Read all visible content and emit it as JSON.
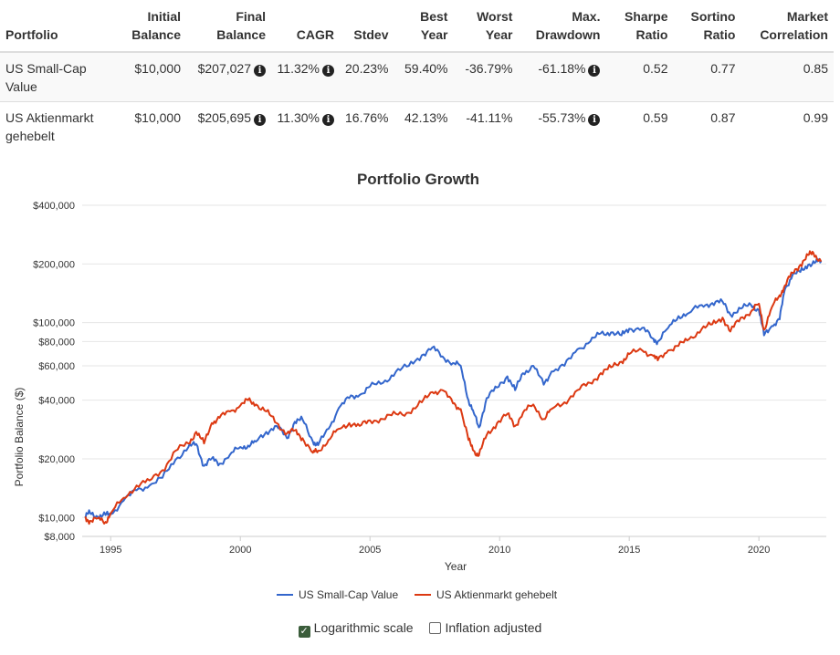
{
  "table": {
    "headers": [
      {
        "l1": "",
        "l2": "Portfolio"
      },
      {
        "l1": "Initial",
        "l2": "Balance"
      },
      {
        "l1": "Final",
        "l2": "Balance"
      },
      {
        "l1": "",
        "l2": "CAGR"
      },
      {
        "l1": "",
        "l2": "Stdev"
      },
      {
        "l1": "Best",
        "l2": "Year"
      },
      {
        "l1": "Worst",
        "l2": "Year"
      },
      {
        "l1": "Max.",
        "l2": "Drawdown"
      },
      {
        "l1": "Sharpe",
        "l2": "Ratio"
      },
      {
        "l1": "Sortino",
        "l2": "Ratio"
      },
      {
        "l1": "Market",
        "l2": "Correlation"
      }
    ],
    "rows": [
      {
        "portfolio_l1": "US Small-Cap",
        "portfolio_l2": "Value",
        "initial": "$10,000",
        "final": "$207,027",
        "cagr": "11.32%",
        "stdev": "20.23%",
        "best": "59.40%",
        "worst": "-36.79%",
        "drawdown": "-61.18%",
        "sharpe": "0.52",
        "sortino": "0.77",
        "corr": "0.85"
      },
      {
        "portfolio_l1": "US Aktienmarkt",
        "portfolio_l2": "gehebelt",
        "initial": "$10,000",
        "final": "$205,695",
        "cagr": "11.30%",
        "stdev": "16.76%",
        "best": "42.13%",
        "worst": "-41.11%",
        "drawdown": "-55.73%",
        "sharpe": "0.59",
        "sortino": "0.87",
        "corr": "0.99"
      }
    ],
    "info_icon": "info-circle-icon",
    "info_glyph": "i"
  },
  "chart_data": {
    "type": "line",
    "title": "Portfolio Growth",
    "xlabel": "Year",
    "ylabel": "Portfolio Balance ($)",
    "yscale": "log",
    "ylim": [
      8000,
      400000
    ],
    "xlim": [
      1993.9,
      2022.6
    ],
    "y_ticks": [
      {
        "v": 8000,
        "label": "$8,000"
      },
      {
        "v": 10000,
        "label": "$10,000"
      },
      {
        "v": 20000,
        "label": "$20,000"
      },
      {
        "v": 40000,
        "label": "$40,000"
      },
      {
        "v": 60000,
        "label": "$60,000"
      },
      {
        "v": 80000,
        "label": "$80,000"
      },
      {
        "v": 100000,
        "label": "$100,000"
      },
      {
        "v": 200000,
        "label": "$200,000"
      },
      {
        "v": 400000,
        "label": "$400,000"
      }
    ],
    "x_ticks": [
      {
        "v": 1995,
        "label": "1995"
      },
      {
        "v": 2000,
        "label": "2000"
      },
      {
        "v": 2005,
        "label": "2005"
      },
      {
        "v": 2010,
        "label": "2010"
      },
      {
        "v": 2015,
        "label": "2015"
      },
      {
        "v": 2020,
        "label": "2020"
      }
    ],
    "series": [
      {
        "name": "US Small-Cap Value",
        "color": "#3366cc",
        "points": [
          [
            1994.0,
            10000
          ],
          [
            1994.2,
            10600
          ],
          [
            1994.5,
            10100
          ],
          [
            1994.8,
            10300
          ],
          [
            1995.0,
            10400
          ],
          [
            1995.5,
            12200
          ],
          [
            1996.0,
            13800
          ],
          [
            1996.5,
            14600
          ],
          [
            1997.0,
            16000
          ],
          [
            1997.5,
            19800
          ],
          [
            1998.0,
            23000
          ],
          [
            1998.3,
            23800
          ],
          [
            1998.6,
            18400
          ],
          [
            1998.9,
            20100
          ],
          [
            1999.2,
            18900
          ],
          [
            1999.6,
            21000
          ],
          [
            2000.0,
            23000
          ],
          [
            2000.3,
            23400
          ],
          [
            2000.6,
            24500
          ],
          [
            2001.0,
            27500
          ],
          [
            2001.4,
            29500
          ],
          [
            2001.8,
            25500
          ],
          [
            2002.1,
            31000
          ],
          [
            2002.4,
            31800
          ],
          [
            2002.8,
            24500
          ],
          [
            2003.0,
            23500
          ],
          [
            2003.4,
            28500
          ],
          [
            2003.8,
            36500
          ],
          [
            2004.2,
            41000
          ],
          [
            2004.6,
            42500
          ],
          [
            2005.0,
            47000
          ],
          [
            2005.5,
            49000
          ],
          [
            2006.0,
            56000
          ],
          [
            2006.5,
            60000
          ],
          [
            2007.0,
            68000
          ],
          [
            2007.4,
            74500
          ],
          [
            2007.8,
            67000
          ],
          [
            2008.2,
            62000
          ],
          [
            2008.5,
            60000
          ],
          [
            2008.8,
            40000
          ],
          [
            2009.0,
            34500
          ],
          [
            2009.2,
            29000
          ],
          [
            2009.5,
            41000
          ],
          [
            2009.9,
            46500
          ],
          [
            2010.3,
            53000
          ],
          [
            2010.6,
            45000
          ],
          [
            2010.9,
            55000
          ],
          [
            2011.3,
            60000
          ],
          [
            2011.7,
            48000
          ],
          [
            2012.0,
            56000
          ],
          [
            2012.5,
            60000
          ],
          [
            2013.0,
            73000
          ],
          [
            2013.5,
            80000
          ],
          [
            2013.9,
            88000
          ],
          [
            2014.3,
            89000
          ],
          [
            2014.7,
            86000
          ],
          [
            2015.0,
            93000
          ],
          [
            2015.5,
            94000
          ],
          [
            2015.9,
            83000
          ],
          [
            2016.1,
            80000
          ],
          [
            2016.5,
            94000
          ],
          [
            2016.9,
            108000
          ],
          [
            2017.3,
            112000
          ],
          [
            2017.8,
            123000
          ],
          [
            2018.2,
            126000
          ],
          [
            2018.6,
            128000
          ],
          [
            2018.9,
            110000
          ],
          [
            2019.3,
            118000
          ],
          [
            2019.7,
            123000
          ],
          [
            2020.0,
            116000
          ],
          [
            2020.2,
            86000
          ],
          [
            2020.5,
            96000
          ],
          [
            2020.8,
            104000
          ],
          [
            2021.0,
            148000
          ],
          [
            2021.3,
            176000
          ],
          [
            2021.6,
            182000
          ],
          [
            2021.9,
            198000
          ],
          [
            2022.2,
            205000
          ],
          [
            2022.4,
            207027
          ]
        ]
      },
      {
        "name": "US Aktienmarkt gehebelt",
        "color": "#dc3912",
        "points": [
          [
            1994.0,
            10000
          ],
          [
            1994.2,
            9600
          ],
          [
            1994.5,
            9900
          ],
          [
            1994.8,
            9500
          ],
          [
            1995.0,
            10500
          ],
          [
            1995.5,
            12600
          ],
          [
            1996.0,
            14600
          ],
          [
            1996.5,
            15500
          ],
          [
            1997.0,
            17500
          ],
          [
            1997.5,
            22000
          ],
          [
            1998.0,
            24000
          ],
          [
            1998.3,
            27500
          ],
          [
            1998.6,
            24000
          ],
          [
            1998.9,
            30500
          ],
          [
            1999.2,
            32500
          ],
          [
            1999.6,
            35000
          ],
          [
            2000.0,
            37500
          ],
          [
            2000.3,
            40000
          ],
          [
            2000.6,
            38000
          ],
          [
            2001.0,
            35000
          ],
          [
            2001.4,
            30500
          ],
          [
            2001.8,
            27000
          ],
          [
            2002.1,
            28000
          ],
          [
            2002.4,
            25500
          ],
          [
            2002.8,
            21500
          ],
          [
            2003.0,
            22000
          ],
          [
            2003.4,
            25000
          ],
          [
            2003.8,
            28500
          ],
          [
            2004.2,
            30500
          ],
          [
            2004.6,
            29500
          ],
          [
            2005.0,
            31500
          ],
          [
            2005.5,
            32000
          ],
          [
            2006.0,
            34000
          ],
          [
            2006.5,
            34500
          ],
          [
            2007.0,
            39000
          ],
          [
            2007.4,
            44000
          ],
          [
            2007.8,
            45000
          ],
          [
            2008.2,
            38500
          ],
          [
            2008.5,
            36000
          ],
          [
            2008.8,
            25000
          ],
          [
            2009.0,
            22000
          ],
          [
            2009.2,
            20800
          ],
          [
            2009.5,
            26500
          ],
          [
            2009.9,
            30500
          ],
          [
            2010.3,
            34000
          ],
          [
            2010.6,
            29500
          ],
          [
            2010.9,
            34500
          ],
          [
            2011.3,
            38000
          ],
          [
            2011.7,
            32000
          ],
          [
            2012.0,
            36000
          ],
          [
            2012.5,
            39000
          ],
          [
            2013.0,
            45000
          ],
          [
            2013.5,
            49000
          ],
          [
            2013.9,
            55000
          ],
          [
            2014.3,
            59000
          ],
          [
            2014.7,
            63000
          ],
          [
            2015.0,
            69000
          ],
          [
            2015.5,
            72000
          ],
          [
            2015.9,
            68000
          ],
          [
            2016.1,
            64000
          ],
          [
            2016.5,
            72000
          ],
          [
            2016.9,
            76000
          ],
          [
            2017.3,
            82000
          ],
          [
            2017.8,
            93000
          ],
          [
            2018.2,
            98000
          ],
          [
            2018.6,
            106000
          ],
          [
            2018.9,
            90000
          ],
          [
            2019.3,
            106000
          ],
          [
            2019.7,
            114000
          ],
          [
            2020.0,
            125000
          ],
          [
            2020.2,
            92000
          ],
          [
            2020.5,
            120000
          ],
          [
            2020.8,
            138000
          ],
          [
            2021.0,
            155000
          ],
          [
            2021.3,
            180000
          ],
          [
            2021.6,
            198000
          ],
          [
            2021.9,
            222000
          ],
          [
            2022.1,
            228000
          ],
          [
            2022.4,
            205695
          ]
        ]
      }
    ],
    "legend_position": "bottom"
  },
  "options": {
    "log_label": "Logarithmic scale",
    "log_checked": true,
    "inflation_label": "Inflation adjusted",
    "inflation_checked": false,
    "check_glyph": "✓"
  }
}
